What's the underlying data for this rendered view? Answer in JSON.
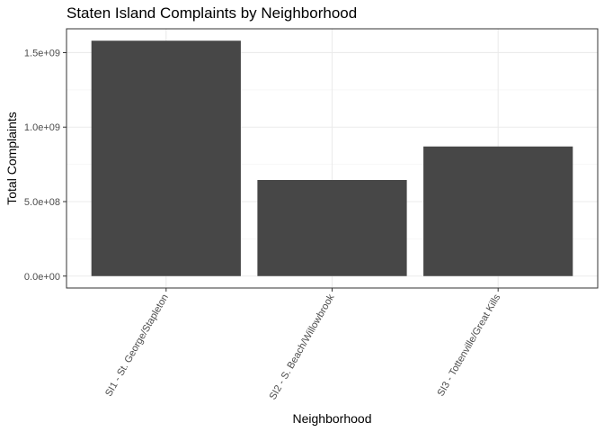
{
  "chart_data": {
    "type": "bar",
    "title": "Staten Island Complaints by Neighborhood",
    "xlabel": "Neighborhood",
    "ylabel": "Total Complaints",
    "categories": [
      "SI1 - St. George/Stapleton",
      "SI2 - S. Beach/Willowbrook",
      "SI3 - Tottenville/Great Kills"
    ],
    "values": [
      1580000000,
      645000000,
      870000000
    ],
    "ylim": [
      -80000000,
      1660000000
    ],
    "y_ticks": [
      0,
      500000000,
      1000000000,
      1500000000
    ],
    "y_tick_labels": [
      "0.0e+00",
      "5.0e+08",
      "1.0e+09",
      "1.5e+09"
    ],
    "grid": true,
    "legend": "none",
    "colors": {
      "bar": "#474747",
      "panel_border": "#333333",
      "grid_major": "#ebebeb",
      "grid_minor": "#f5f5f5",
      "tick_text": "#4d4d4d"
    }
  }
}
